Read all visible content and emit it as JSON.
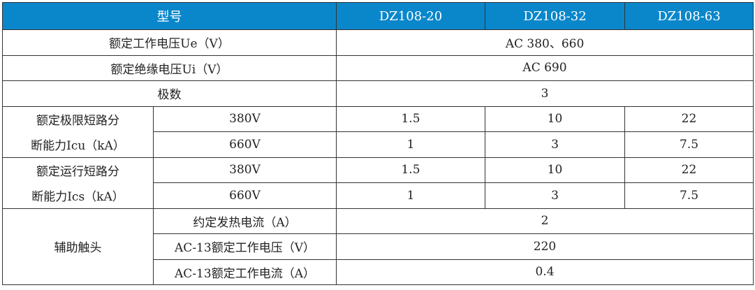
{
  "header": {
    "model_label": "型号",
    "models": [
      "DZ108-20",
      "DZ108-32",
      "DZ108-63"
    ],
    "bg_color": "#0a87cb"
  },
  "rows": {
    "rated_voltage": {
      "label": "额定工作电压Ue（V）",
      "value": "AC 380、660"
    },
    "insulation_voltage": {
      "label": "额定绝缘电压Ui（V）",
      "value": "AC 690"
    },
    "poles": {
      "label": "极数",
      "value": "3"
    },
    "icu": {
      "label_line1": "额定极限短路分",
      "label_line2": "断能力Icu（kA）",
      "sub": [
        {
          "voltage": "380V",
          "values": [
            "1.5",
            "10",
            "22"
          ]
        },
        {
          "voltage": "660V",
          "values": [
            "1",
            "3",
            "7.5"
          ]
        }
      ]
    },
    "ics": {
      "label_line1": "额定运行短路分",
      "label_line2": "断能力Ics（kA）",
      "sub": [
        {
          "voltage": "380V",
          "values": [
            "1.5",
            "10",
            "22"
          ]
        },
        {
          "voltage": "660V",
          "values": [
            "1",
            "3",
            "7.5"
          ]
        }
      ]
    },
    "aux": {
      "label": "辅助触头",
      "sub": [
        {
          "label": "约定发热电流（A）",
          "value": "2"
        },
        {
          "label": "AC-13额定工作电压（V）",
          "value": "220"
        },
        {
          "label": "AC-13额定工作电流（A）",
          "value": "0.4"
        }
      ]
    }
  }
}
